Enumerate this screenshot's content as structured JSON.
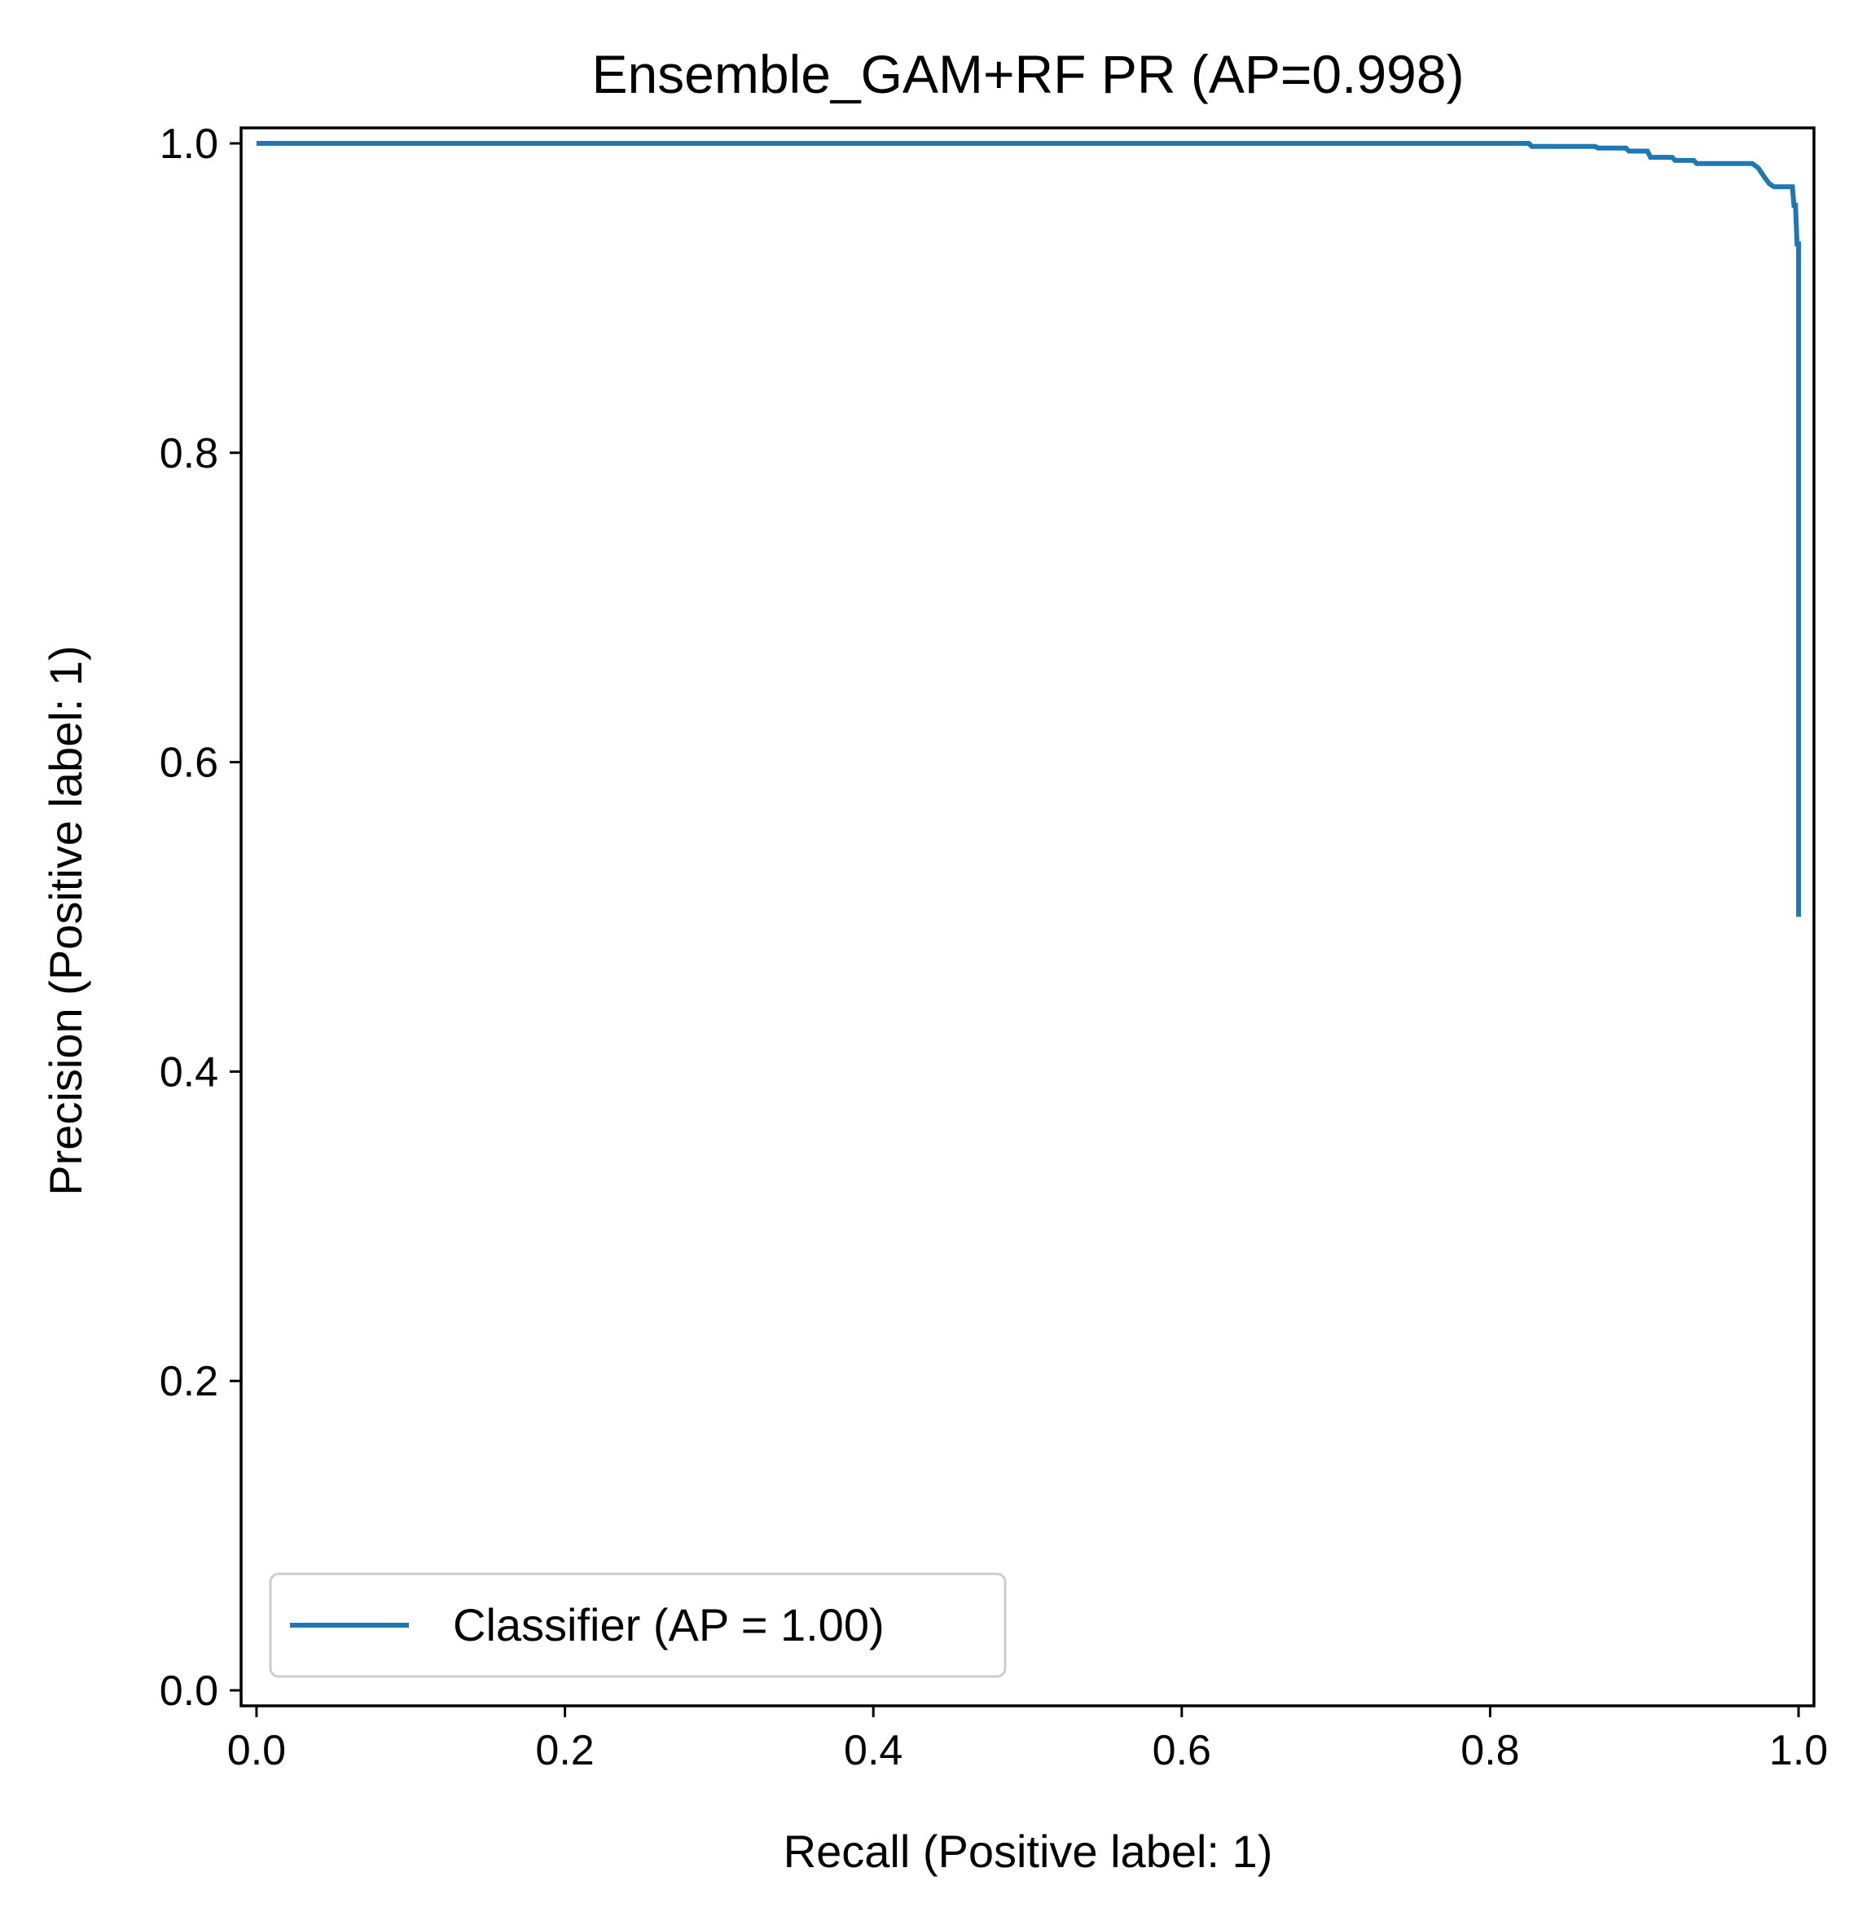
{
  "chart_data": {
    "type": "line",
    "title": "Ensemble_GAM+RF PR (AP=0.998)",
    "xlabel": "Recall (Positive label: 1)",
    "ylabel": "Precision (Positive label: 1)",
    "xlim": [
      -0.01,
      1.01
    ],
    "ylim": [
      -0.01,
      1.01
    ],
    "xticks": [
      0.0,
      0.2,
      0.4,
      0.6,
      0.8,
      1.0
    ],
    "yticks": [
      0.0,
      0.2,
      0.4,
      0.6,
      0.8,
      1.0
    ],
    "xtick_labels": [
      "0.0",
      "0.2",
      "0.4",
      "0.6",
      "0.8",
      "1.0"
    ],
    "ytick_labels": [
      "0.0",
      "0.2",
      "0.4",
      "0.6",
      "0.8",
      "1.0"
    ],
    "grid": false,
    "legend_position": "lower-left",
    "series": [
      {
        "name": "Classifier (AP = 1.00)",
        "color": "#1f77b4",
        "x": [
          0.0,
          0.825,
          0.827,
          0.868,
          0.87,
          0.888,
          0.89,
          0.902,
          0.904,
          0.918,
          0.92,
          0.932,
          0.934,
          0.97,
          0.974,
          0.978,
          0.981,
          0.984,
          0.996,
          0.997,
          0.998,
          0.999,
          1.0,
          1.0
        ],
        "y": [
          1.0,
          1.0,
          0.998,
          0.998,
          0.997,
          0.997,
          0.995,
          0.995,
          0.991,
          0.991,
          0.989,
          0.989,
          0.987,
          0.987,
          0.984,
          0.978,
          0.974,
          0.972,
          0.972,
          0.96,
          0.96,
          0.935,
          0.935,
          0.5
        ]
      }
    ]
  }
}
